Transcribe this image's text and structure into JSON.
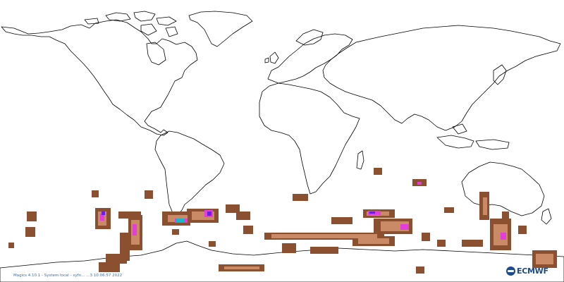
{
  "map": {
    "projection": "equirectangular-global",
    "colors": {
      "coastline": "#000000",
      "outer_band": "#8a5030",
      "inner_band": "#c98a65",
      "high": "#e23fd8",
      "very_high": "#6a1fe0",
      "extreme": "#19b6c7"
    }
  },
  "footer": {
    "credit": "Magics 4.10.1 - System local - xyfn... ...3 10:06:57 2022"
  },
  "logo": {
    "text": "ECMWF",
    "icon": "ecmwf-logo-icon"
  }
}
